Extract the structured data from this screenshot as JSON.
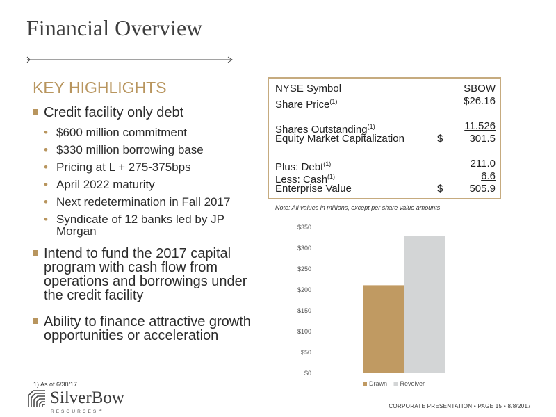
{
  "title": "Financial Overview",
  "highlights": {
    "heading": "KEY HIGHLIGHTS",
    "items": [
      {
        "text": "Credit facility only debt",
        "subs": [
          "$600 million commitment",
          "$330 million borrowing base",
          "Pricing at L + 275-375bps",
          "April 2022 maturity",
          "Next redetermination in Fall 2017",
          "Syndicate of 12 banks led by JP Morgan"
        ]
      },
      {
        "text": "Intend to fund the 2017 capital program with cash flow from operations and borrowings under the credit facility"
      },
      {
        "text": "Ability to finance attractive growth opportunities or acceleration"
      }
    ]
  },
  "financial_table": {
    "rows": [
      {
        "label": "NYSE Symbol",
        "value": "SBOW"
      },
      {
        "label": "Share Price",
        "sup": "(1)",
        "value": "$26.16"
      },
      {
        "label": "Shares Outstanding",
        "sup": "(1)",
        "value": "11.526",
        "underline": true,
        "gap": true
      },
      {
        "label": "Equity Market Capitalization",
        "currency": "$",
        "value": "301.5"
      },
      {
        "label": "Plus: Debt",
        "sup": "(1)",
        "value": "211.0",
        "gap": true
      },
      {
        "label": "Less: Cash",
        "sup": "(1)",
        "value": "6.6",
        "underline": true
      },
      {
        "label": "Enterprise Value",
        "currency": "$",
        "value": "505.9"
      }
    ]
  },
  "note": "Note: All values in millions, except per share value amounts",
  "chart_data": {
    "type": "bar",
    "categories": [
      "Drawn",
      "Revolver"
    ],
    "values": [
      211,
      330
    ],
    "colors": [
      "#c09a62",
      "#d3d5d6"
    ],
    "y_ticks": [
      "$0",
      "$50",
      "$100",
      "$150",
      "$200",
      "$250",
      "$300",
      "$350"
    ],
    "ylim": [
      0,
      350
    ],
    "legend": [
      "Drawn",
      "Revolver"
    ],
    "legend_position": "bottom",
    "grid": false
  },
  "footnote": "1)    As of 6/30/17",
  "logo": {
    "name": "SilverBow",
    "sub": "RESOURCES℠"
  },
  "footer": "CORPORATE PRESENTATION   •   PAGE 15   •   8/8/2017",
  "colors": {
    "accent": "#b8955e",
    "box_border": "#c6ab7f"
  }
}
